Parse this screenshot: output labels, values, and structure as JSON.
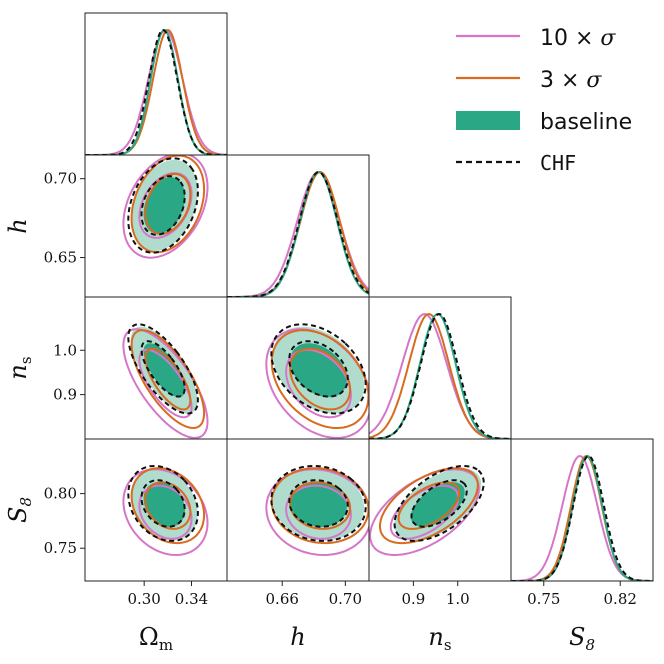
{
  "colors": {
    "baseline": "#2aa886",
    "baseline_light": "#b0dcce",
    "sigma10": "#d676c8",
    "sigma3": "#d86b1f",
    "chf": "#111111",
    "frame": "#222222"
  },
  "legend": {
    "entries": [
      {
        "id": "sigma10",
        "label_a": "10 × ",
        "label_b": "σ"
      },
      {
        "id": "sigma3",
        "label_a": "3 × ",
        "label_b": "σ"
      },
      {
        "id": "baseline",
        "label_a": "baseline",
        "label_b": ""
      },
      {
        "id": "chf",
        "label_a": "CHF",
        "label_b": ""
      }
    ]
  },
  "chart_data": {
    "type": "corner",
    "parameters": [
      {
        "key": "om",
        "symbol": "Ω",
        "sub": "m",
        "range": [
          0.25,
          0.37
        ],
        "ticks": [
          0.3,
          0.34
        ],
        "tick_labels": [
          "0.30",
          "0.34"
        ]
      },
      {
        "key": "h",
        "symbol": "h",
        "sub": "",
        "range": [
          0.625,
          0.715
        ],
        "ticks": [
          0.66,
          0.7
        ],
        "tick_labels": [
          "0.66",
          "0.70"
        ]
      },
      {
        "key": "ns",
        "symbol": "n",
        "sub": "s",
        "range": [
          0.8,
          1.12
        ],
        "ticks": [
          0.9,
          1.0
        ],
        "y_ticks": [
          0.9,
          1.0
        ],
        "tick_labels": [
          "0.9",
          "1.0"
        ]
      },
      {
        "key": "s8",
        "symbol": "S",
        "sub": "8",
        "range": [
          0.72,
          0.85
        ],
        "ticks": [
          0.75,
          0.82
        ],
        "y_ticks": [
          0.75,
          0.8
        ],
        "tick_labels": [
          "0.75",
          "0.82"
        ],
        "y_tick_labels": [
          "0.75",
          "0.80"
        ]
      }
    ],
    "h_y_ticks": [
      0.65,
      0.7
    ],
    "h_y_tick_labels": [
      "0.65",
      "0.70"
    ],
    "series": [
      {
        "name": "10 × σ",
        "color": "sigma10",
        "style": "solid",
        "mean": [
          0.318,
          0.683,
          0.925,
          0.783
        ],
        "sigma": [
          0.0145,
          0.0135,
          0.05,
          0.016
        ],
        "corr": {
          "om-h": 0.35,
          "om-ns": -0.7,
          "om-s8": -0.25,
          "h-ns": -0.35,
          "h-s8": -0.1,
          "ns-s8": 0.55
        }
      },
      {
        "name": "3 × σ",
        "color": "sigma3",
        "style": "solid",
        "mean": [
          0.32,
          0.684,
          0.935,
          0.789
        ],
        "sigma": [
          0.0125,
          0.0125,
          0.045,
          0.014
        ],
        "corr": {
          "om-h": 0.3,
          "om-ns": -0.7,
          "om-s8": -0.25,
          "h-ns": -0.35,
          "h-s8": -0.1,
          "ns-s8": 0.55
        }
      },
      {
        "name": "baseline",
        "color": "baseline",
        "style": "filled",
        "mean": [
          0.317,
          0.683,
          0.955,
          0.79
        ],
        "sigma": [
          0.0115,
          0.0118,
          0.04,
          0.0135
        ],
        "corr": {
          "om-h": 0.3,
          "om-ns": -0.7,
          "om-s8": -0.25,
          "h-ns": -0.35,
          "h-s8": -0.1,
          "ns-s8": 0.55
        }
      },
      {
        "name": "CHF",
        "color": "chf",
        "style": "dashed",
        "mean": [
          0.316,
          0.683,
          0.958,
          0.791
        ],
        "sigma": [
          0.012,
          0.0122,
          0.041,
          0.014
        ],
        "corr": {
          "om-h": 0.3,
          "om-ns": -0.7,
          "om-s8": -0.25,
          "h-ns": -0.35,
          "h-s8": -0.1,
          "ns-s8": 0.55
        }
      }
    ]
  }
}
